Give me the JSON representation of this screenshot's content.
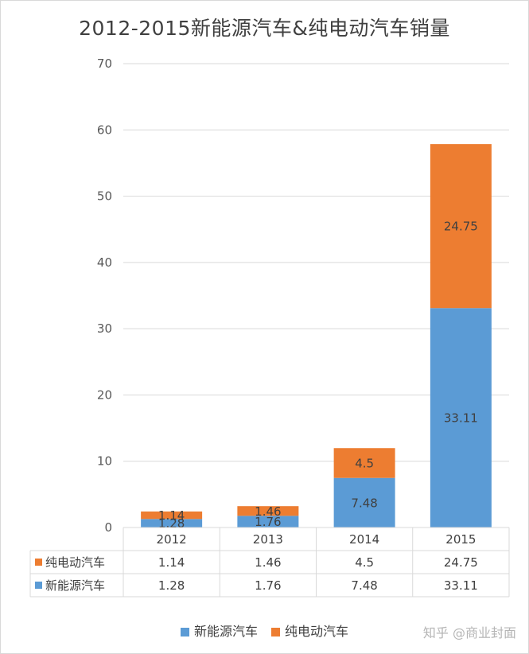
{
  "chart_data": {
    "type": "bar",
    "stacked": true,
    "title": "2012-2015新能源汽车&纯电动汽车销量",
    "categories": [
      "2012",
      "2013",
      "2014",
      "2015"
    ],
    "series": [
      {
        "name": "新能源汽车",
        "values": [
          1.28,
          1.76,
          7.48,
          33.11
        ],
        "labels": [
          "1.28",
          "1.76",
          "7.48",
          "33.11"
        ],
        "color": "#5b9bd5"
      },
      {
        "name": "纯电动汽车",
        "values": [
          1.14,
          1.46,
          4.5,
          24.75
        ],
        "labels": [
          "1.14",
          "1.46",
          "4.5",
          "24.75"
        ],
        "color": "#ed7d31"
      }
    ],
    "ylim": [
      0,
      70
    ],
    "yticks": [
      "0",
      "10",
      "20",
      "30",
      "40",
      "50",
      "60",
      "70"
    ],
    "grid": true,
    "legend": "bottom",
    "data_table": true
  },
  "watermark": "知乎 @商业封面"
}
